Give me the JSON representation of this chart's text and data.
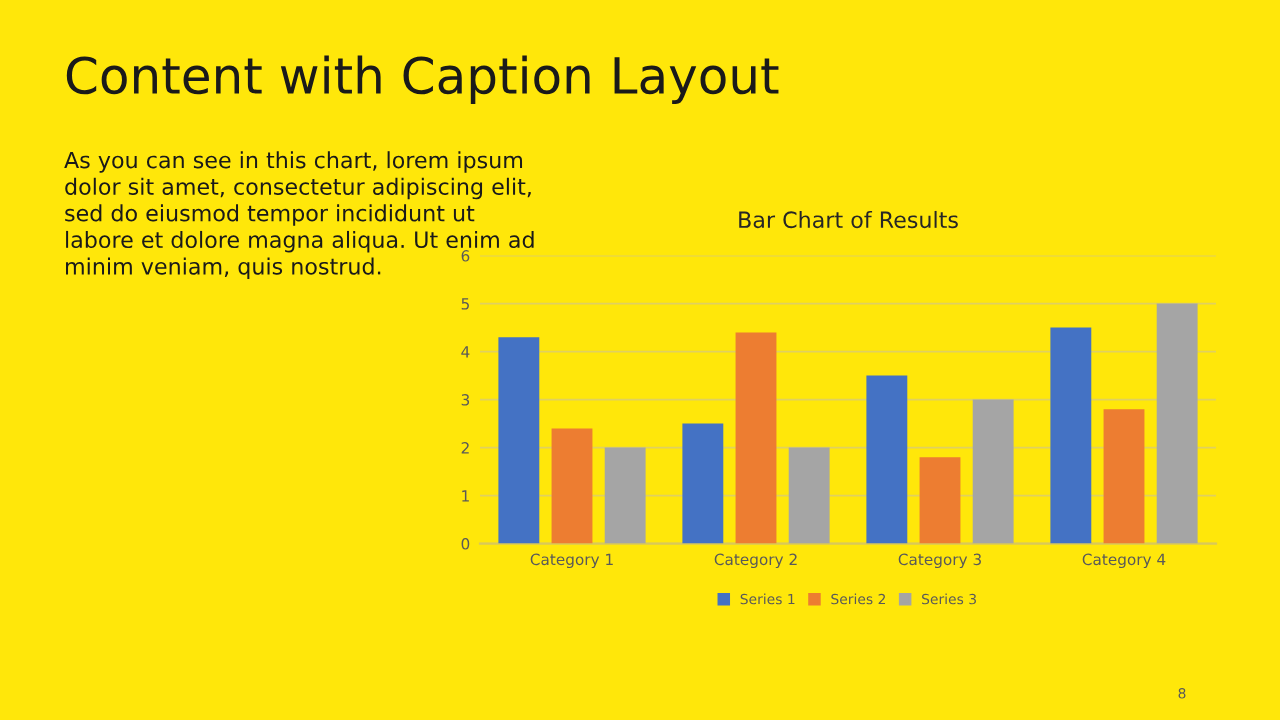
{
  "chart_data": {
    "type": "bar",
    "title": "Bar Chart of Results",
    "categories": [
      "Category 1",
      "Category 2",
      "Category 3",
      "Category 4"
    ],
    "series": [
      {
        "name": "Series 1",
        "color": "#4472c4",
        "values": [
          4.3,
          2.5,
          3.5,
          4.5
        ]
      },
      {
        "name": "Series 2",
        "color": "#ed7d31",
        "values": [
          2.4,
          4.4,
          1.8,
          2.8
        ]
      },
      {
        "name": "Series 3",
        "color": "#a5a5a5",
        "values": [
          2,
          2,
          3,
          5
        ]
      }
    ],
    "ylim": [
      0,
      6
    ],
    "yticks": [
      0,
      1,
      2,
      3,
      4,
      5,
      6
    ],
    "grid": "y",
    "legend": "bottom",
    "annotations": [
      "Content with Caption Layout",
      "As you can see in this chart, lorem ipsum dolor sit amet, consectetur adipiscing elit, sed do eiusmod tempor incididunt ut labore et dolore magna aliqua. Ut enim ad minim veniam, quis nostrud.",
      "8"
    ]
  }
}
